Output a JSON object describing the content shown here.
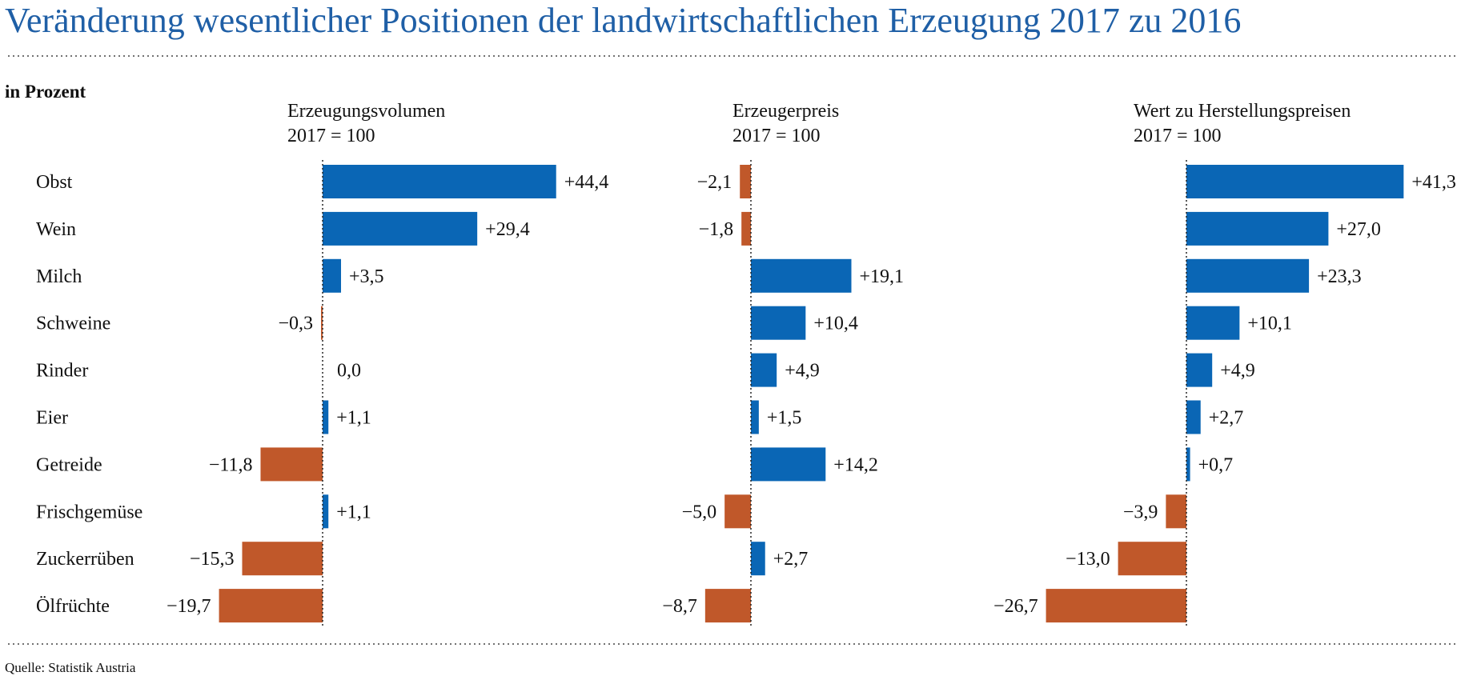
{
  "header": {
    "title": "Veränderung wesentlicher Positionen der landwirtschaftlichen Erzeugung 2017 zu 2016",
    "unit": "in Prozent"
  },
  "footer": {
    "source": "Quelle: Statistik Austria"
  },
  "colors": {
    "positive": "#0a66b5",
    "negative": "#c0582a",
    "title": "#1f5fa6"
  },
  "chart_data": {
    "type": "bar",
    "orientation": "horizontal",
    "categories": [
      "Obst",
      "Wein",
      "Milch",
      "Schweine",
      "Rinder",
      "Eier",
      "Getreide",
      "Frischgemüse",
      "Zuckerrüben",
      "Ölfrüchte"
    ],
    "panels": [
      {
        "title": "Erzeugungsvolumen",
        "subtitle": "2017 = 100",
        "values": [
          44.4,
          29.4,
          3.5,
          -0.3,
          0.0,
          1.1,
          -11.8,
          1.1,
          -15.3,
          -19.7
        ],
        "labels": [
          "+44,4",
          "+29,4",
          "+3,5",
          "−0,3",
          "0,0",
          "+1,1",
          "−11,8",
          "+1,1",
          "−15,3",
          "−19,7"
        ]
      },
      {
        "title": "Erzeugerpreis",
        "subtitle": "2017 = 100",
        "values": [
          -2.1,
          -1.8,
          19.1,
          10.4,
          4.9,
          1.5,
          14.2,
          -5.0,
          2.7,
          -8.7
        ],
        "labels": [
          "−2,1",
          "−1,8",
          "+19,1",
          "+10,4",
          "+4,9",
          "+1,5",
          "+14,2",
          "−5,0",
          "+2,7",
          "−8,7"
        ]
      },
      {
        "title": "Wert zu Herstellungspreisen",
        "subtitle": "2017 = 100",
        "values": [
          41.3,
          27.0,
          23.3,
          10.1,
          4.9,
          2.7,
          0.7,
          -3.9,
          -13.0,
          -26.7
        ],
        "labels": [
          "+41,3",
          "+27,0",
          "+23,3",
          "+10,1",
          "+4,9",
          "+2,7",
          "+0,7",
          "−3,9",
          "−13,0",
          "−26,7"
        ]
      }
    ]
  }
}
